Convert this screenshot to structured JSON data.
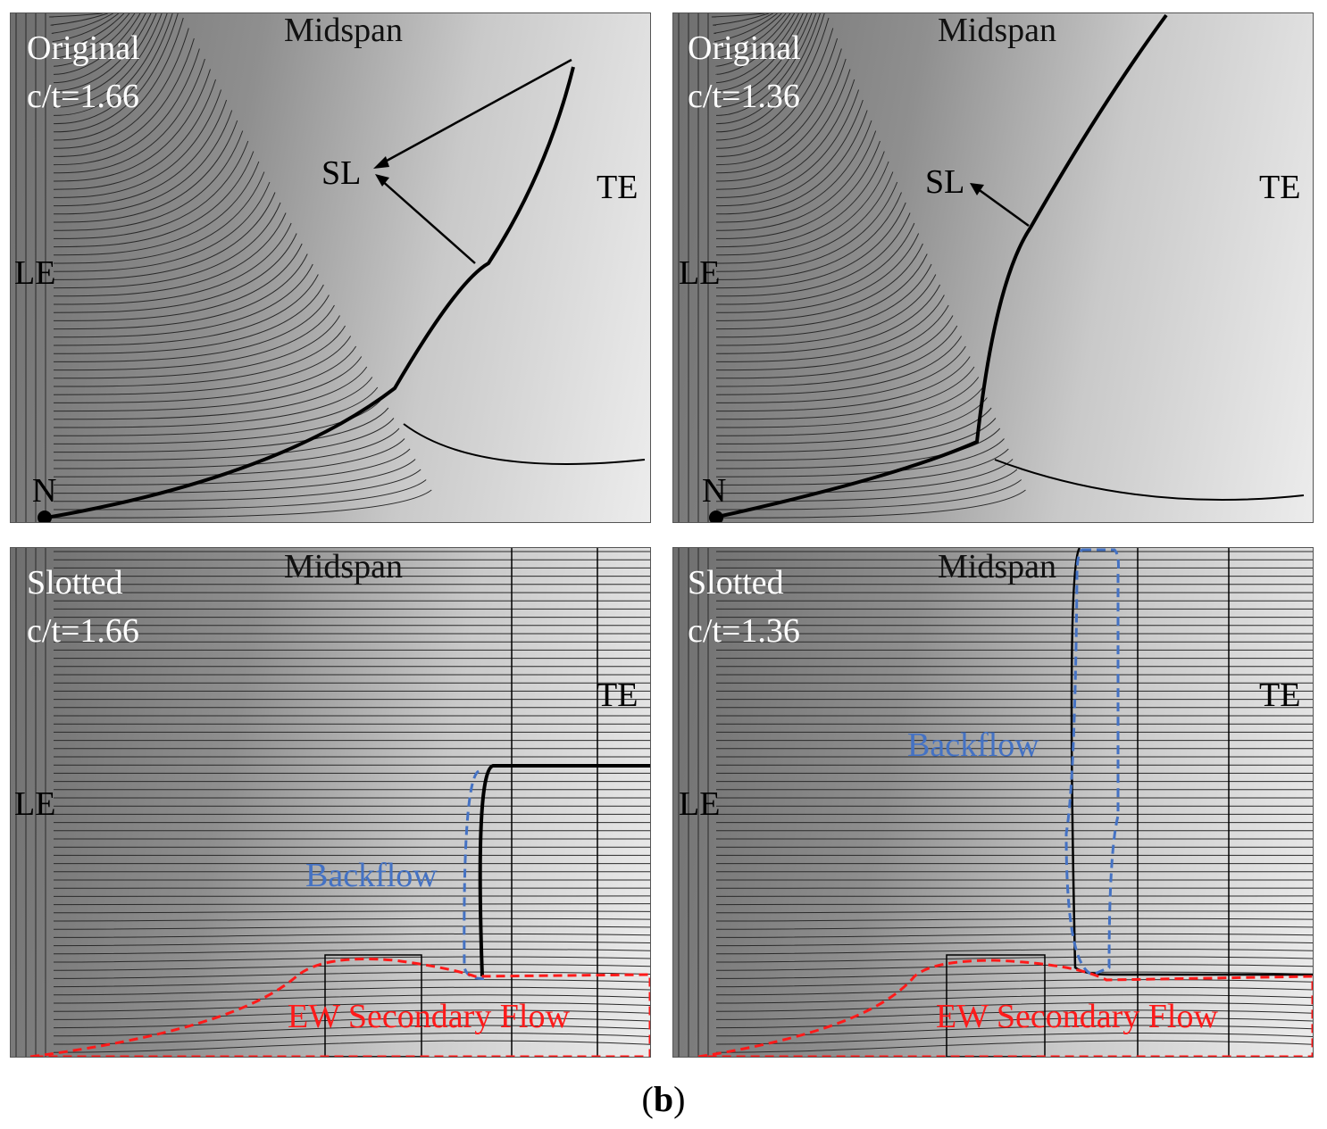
{
  "panels": [
    {
      "config": "Original",
      "ratio": "c/t=1.66",
      "midspan": "Midspan",
      "te": "TE",
      "le": "LE",
      "node": "N",
      "sl": "SL"
    },
    {
      "config": "Original",
      "ratio": "c/t=1.36",
      "midspan": "Midspan",
      "te": "TE",
      "le": "LE",
      "node": "N",
      "sl": "SL"
    },
    {
      "config": "Slotted",
      "ratio": "c/t=1.66",
      "midspan": "Midspan",
      "te": "TE",
      "le": "LE",
      "backflow": "Backflow",
      "secondary": "EW Secondary Flow"
    },
    {
      "config": "Slotted",
      "ratio": "c/t=1.36",
      "midspan": "Midspan",
      "te": "TE",
      "le": "LE",
      "backflow": "Backflow",
      "secondary": "EW Secondary Flow"
    }
  ],
  "caption": {
    "open": "(",
    "letter": "b",
    "close": ")"
  },
  "colors": {
    "backflow": "#4472c4",
    "secondary_flow": "#ff1a1a",
    "streamline": "#2a2a2a"
  }
}
